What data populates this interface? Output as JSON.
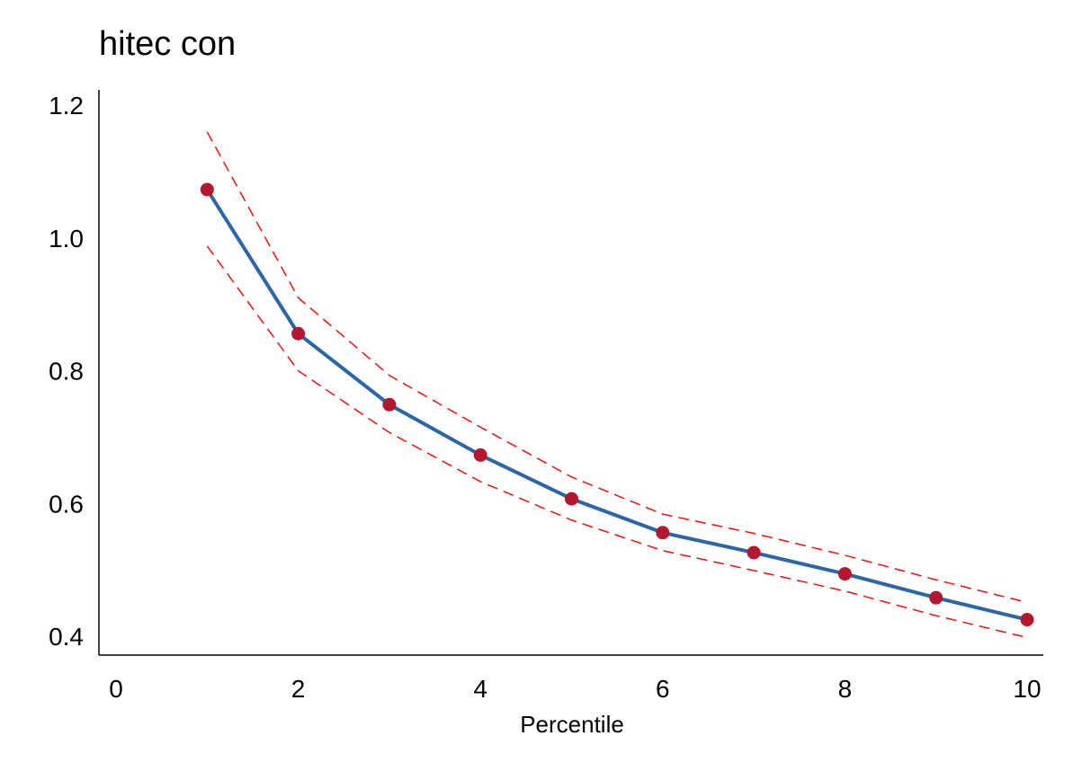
{
  "chart_data": {
    "type": "line",
    "title": "hitec con",
    "xlabel": "Percentile",
    "ylabel": "",
    "xlim": [
      0,
      10
    ],
    "ylim": [
      0.4,
      1.2
    ],
    "x_ticks": [
      0,
      2,
      4,
      6,
      8,
      10
    ],
    "y_ticks": [
      0.4,
      0.6,
      0.8,
      1.0,
      1.2
    ],
    "y_tick_labels": [
      "0.4",
      "0.6",
      "0.8",
      "1.0",
      "1.2"
    ],
    "grid": false,
    "x": [
      1,
      2,
      3,
      4,
      5,
      6,
      7,
      8,
      9,
      10
    ],
    "series": [
      {
        "role": "estimate",
        "values": [
          1.073,
          0.856,
          0.749,
          0.673,
          0.607,
          0.556,
          0.526,
          0.494,
          0.458,
          0.425
        ]
      },
      {
        "role": "upper",
        "values": [
          1.16,
          0.91,
          0.793,
          0.715,
          0.64,
          0.584,
          0.555,
          0.522,
          0.485,
          0.451
        ]
      },
      {
        "role": "lower",
        "values": [
          0.988,
          0.8,
          0.707,
          0.633,
          0.575,
          0.529,
          0.499,
          0.468,
          0.431,
          0.398
        ]
      }
    ],
    "colors": {
      "line": "#2b67a8",
      "marker": "#b5172e",
      "band": "#ee1111"
    }
  }
}
